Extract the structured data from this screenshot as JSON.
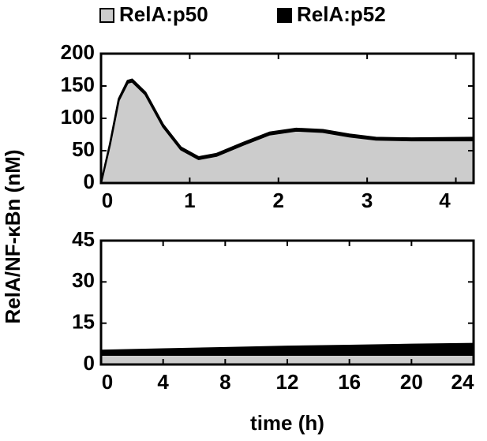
{
  "chart_data": [
    {
      "type": "area",
      "ylabel": "RelA/NF-κBn (nM)",
      "x": [
        0,
        0.1,
        0.2,
        0.3,
        0.35,
        0.5,
        0.7,
        0.9,
        1.1,
        1.3,
        1.6,
        1.9,
        2.2,
        2.5,
        2.8,
        3.1,
        3.5,
        4.2
      ],
      "series": [
        {
          "name": "RelA:p50",
          "color": "#cccccc",
          "values": [
            0,
            59,
            128,
            155,
            157,
            137,
            87,
            52,
            37,
            42,
            59,
            75,
            81,
            79,
            72,
            67,
            66,
            66
          ]
        },
        {
          "name": "RelA:p52",
          "color": "#000000",
          "values": [
            0,
            1,
            2,
            3,
            3,
            3,
            3,
            3,
            3,
            3,
            3,
            3,
            3,
            3,
            3,
            3,
            3,
            4
          ]
        }
      ],
      "xlim": [
        0,
        4.2
      ],
      "ylim": [
        0,
        200
      ],
      "xticks": [
        0,
        1,
        2,
        3,
        4
      ],
      "yticks": [
        0,
        50,
        100,
        150,
        200
      ]
    },
    {
      "type": "area",
      "xlabel": "time (h)",
      "x": [
        0,
        4,
        8,
        12,
        16,
        20,
        24
      ],
      "series": [
        {
          "name": "RelA:p50",
          "color": "#cccccc",
          "values": [
            3.5,
            3.5,
            3.5,
            3.5,
            3.5,
            3.5,
            3.5
          ]
        },
        {
          "name": "RelA:p52",
          "color": "#000000",
          "values": [
            1.5,
            2,
            2.5,
            3,
            3.3,
            3.7,
            4
          ]
        }
      ],
      "xlim": [
        0,
        24
      ],
      "ylim": [
        0,
        45
      ],
      "xticks": [
        0,
        4,
        8,
        12,
        16,
        20,
        24
      ],
      "yticks": [
        0,
        15,
        30,
        45
      ]
    }
  ]
}
